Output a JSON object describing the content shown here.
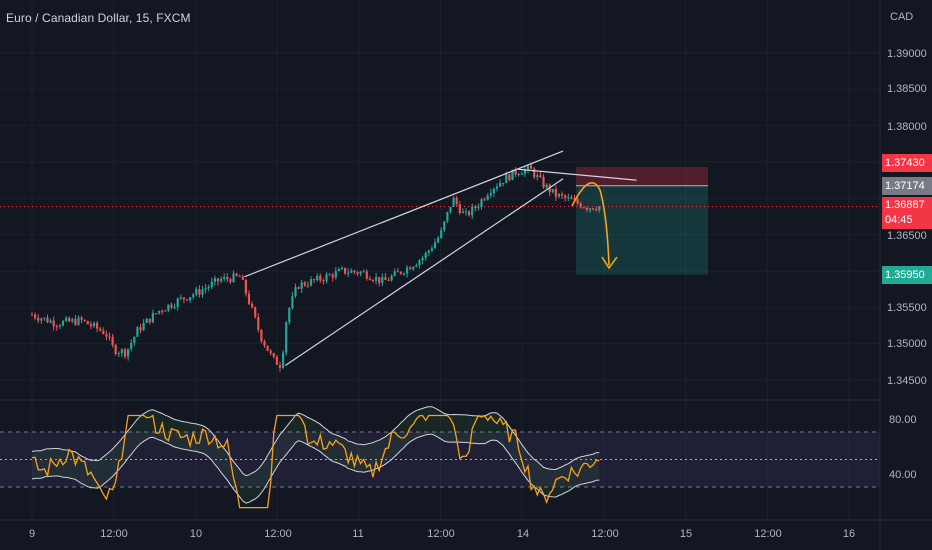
{
  "symbol": {
    "title": "Euro / Canadian Dollar, 15, FXCM",
    "currency": "CAD"
  },
  "price_axis": {
    "ticks": [
      "1.39000",
      "1.38500",
      "1.38000",
      "1.35500",
      "1.35000",
      "1.34500"
    ],
    "hidden_tick": "1.36500"
  },
  "price_tags": {
    "stop_loss": {
      "value": "1.37430",
      "color": "#f23645"
    },
    "entry": {
      "value": "1.37174",
      "color": "#787b86"
    },
    "current": {
      "value": "1.36887",
      "countdown": "04:45",
      "color": "#f23645"
    },
    "take_profit": {
      "value": "1.35950",
      "color": "#22ab94"
    }
  },
  "oscillator_axis": {
    "ticks": [
      "80.00",
      "40.00"
    ]
  },
  "time_axis": {
    "ticks": [
      "9",
      "12:00",
      "10",
      "12:00",
      "11",
      "12:00",
      "14",
      "12:00",
      "15",
      "12:00",
      "16"
    ]
  },
  "chart_data": {
    "type": "candlestick",
    "title": "Euro / Canadian Dollar, 15, FXCM",
    "ylabel": "CAD",
    "ylim": [
      1.343,
      1.394
    ],
    "x": [
      "9",
      "12:00",
      "10",
      "12:00",
      "11",
      "12:00",
      "14",
      "12:00",
      "15",
      "12:00",
      "16"
    ],
    "close_path": [
      [
        0,
        1.354
      ],
      [
        0.3,
        1.3528
      ],
      [
        0.6,
        1.3532
      ],
      [
        0.9,
        1.3515
      ],
      [
        1.0,
        1.3492
      ],
      [
        1.15,
        1.3488
      ],
      [
        1.3,
        1.352
      ],
      [
        1.55,
        1.3545
      ],
      [
        1.8,
        1.356
      ],
      [
        2.05,
        1.3572
      ],
      [
        2.3,
        1.3588
      ],
      [
        2.55,
        1.3592
      ],
      [
        2.65,
        1.356
      ],
      [
        2.8,
        1.351
      ],
      [
        2.95,
        1.3478
      ],
      [
        3.05,
        1.347
      ],
      [
        3.12,
        1.354
      ],
      [
        3.25,
        1.358
      ],
      [
        3.5,
        1.3588
      ],
      [
        3.8,
        1.36
      ],
      [
        4.05,
        1.3598
      ],
      [
        4.3,
        1.3585
      ],
      [
        4.6,
        1.3605
      ],
      [
        4.8,
        1.362
      ],
      [
        5.0,
        1.365
      ],
      [
        5.15,
        1.37
      ],
      [
        5.3,
        1.3675
      ],
      [
        5.45,
        1.369
      ],
      [
        5.6,
        1.3712
      ],
      [
        5.8,
        1.3728
      ],
      [
        5.95,
        1.3738
      ],
      [
        6.1,
        1.374
      ],
      [
        6.25,
        1.372
      ],
      [
        6.4,
        1.3705
      ],
      [
        6.6,
        1.3697
      ],
      [
        6.8,
        1.3688
      ],
      [
        6.95,
        1.3689
      ]
    ],
    "wedge_upper": [
      [
        2.6,
        1.3592
      ],
      [
        6.5,
        1.3765
      ]
    ],
    "wedge_lower": [
      [
        3.1,
        1.347
      ],
      [
        6.5,
        1.3727
      ]
    ],
    "top_line": [
      [
        5.95,
        1.374
      ],
      [
        7.4,
        1.3725
      ]
    ],
    "position": {
      "side": "short",
      "entry": 1.37174,
      "stop_loss": 1.3743,
      "take_profit": 1.3595
    },
    "current_price": 1.36887,
    "oscillator": {
      "levels": [
        70,
        50,
        30
      ],
      "labels": [
        80,
        40
      ]
    }
  }
}
